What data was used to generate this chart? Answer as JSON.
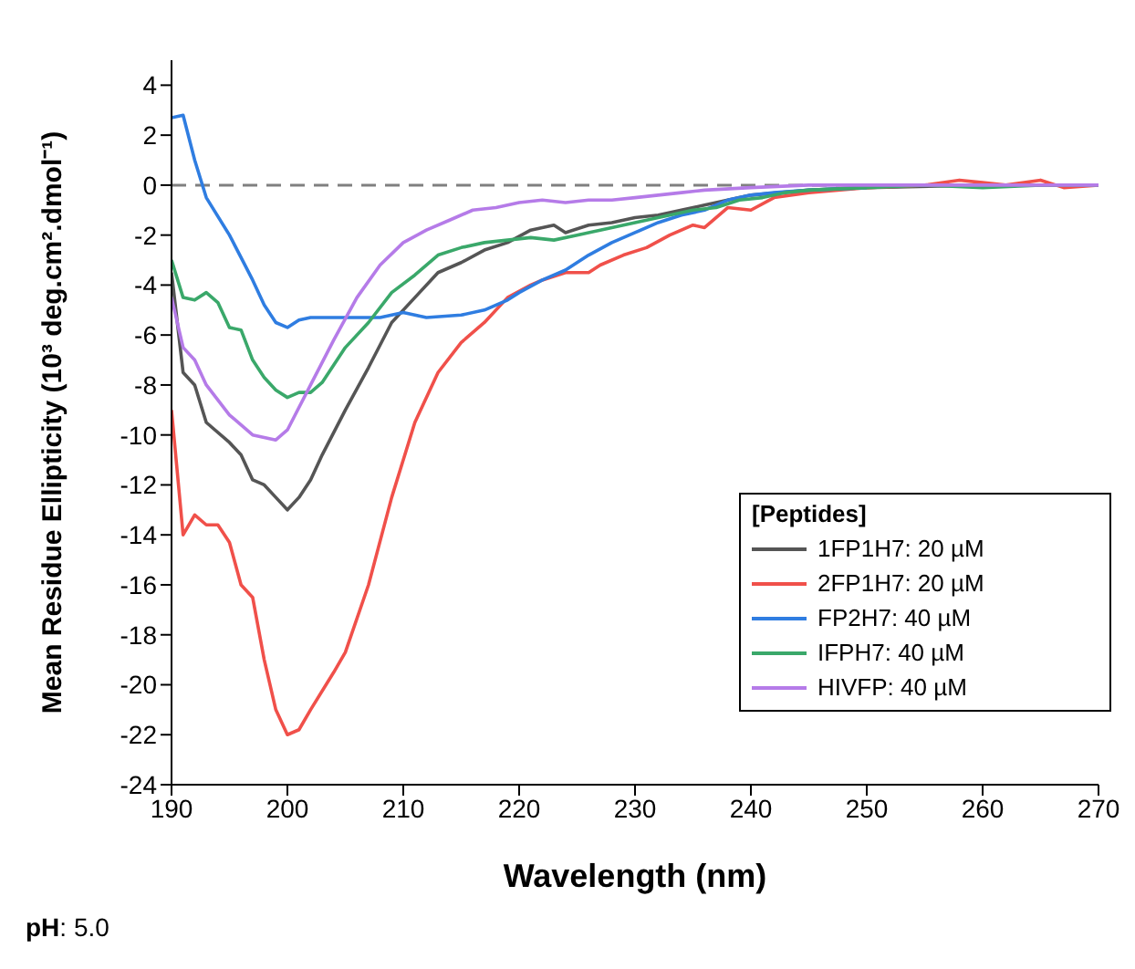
{
  "chart_data": {
    "type": "line",
    "xlabel": "Wavelength (nm)",
    "ylabel": "Mean Residue Ellipticity (10³ deg.cm².dmol⁻¹)",
    "legend_title": "[Peptides]",
    "xlim": [
      190,
      270
    ],
    "xticks": [
      190,
      200,
      210,
      220,
      230,
      240,
      250,
      260,
      270
    ],
    "ylim": [
      -24,
      5
    ],
    "yticks": [
      -24,
      -22,
      -20,
      -18,
      -16,
      -14,
      -12,
      -10,
      -8,
      -6,
      -4,
      -2,
      0,
      2,
      4
    ],
    "grid": false,
    "legend": "bottom right",
    "marker": "none",
    "line_style": "solid",
    "ref_lines": [
      {
        "axis": "y",
        "value": 0,
        "color": "#808080",
        "line_style": "dashed"
      }
    ],
    "annotations": [
      "pH: 5.0"
    ],
    "series": [
      {
        "name": "1FP1H7: 20 µM",
        "color": "#555555",
        "x": [
          190,
          191,
          192,
          193,
          195,
          196,
          197,
          198,
          199,
          200,
          201,
          202,
          203,
          205,
          207,
          209,
          211,
          213,
          215,
          217,
          219,
          221,
          222,
          223,
          224,
          226,
          228,
          230,
          232,
          234,
          236,
          238,
          240,
          245,
          250,
          260,
          270
        ],
        "values": [
          -3.5,
          -7.5,
          -8,
          -9.5,
          -10.3,
          -10.8,
          -11.8,
          -12,
          -12.5,
          -13,
          -12.5,
          -11.8,
          -10.8,
          -9,
          -7.3,
          -5.5,
          -4.5,
          -3.5,
          -3.1,
          -2.6,
          -2.3,
          -1.8,
          -1.7,
          -1.6,
          -1.9,
          -1.6,
          -1.5,
          -1.3,
          -1.2,
          -1.0,
          -0.8,
          -0.6,
          -0.4,
          -0.2,
          -0.1,
          0,
          0
        ]
      },
      {
        "name": "2FP1H7: 20 µM",
        "color": "#f0504a",
        "x": [
          190,
          191,
          192,
          193,
          194,
          195,
          196,
          197,
          198,
          199,
          200,
          201,
          202,
          204,
          205,
          207,
          209,
          211,
          213,
          215,
          217,
          219,
          221,
          222,
          224,
          226,
          227,
          229,
          231,
          233,
          235,
          236,
          238,
          240,
          242,
          245,
          250,
          255,
          258,
          260,
          262,
          265,
          267,
          270
        ],
        "values": [
          -9,
          -14,
          -13.2,
          -13.6,
          -13.6,
          -14.3,
          -16,
          -16.5,
          -19,
          -21,
          -22,
          -21.8,
          -21,
          -19.5,
          -18.7,
          -16,
          -12.5,
          -9.5,
          -7.5,
          -6.3,
          -5.5,
          -4.5,
          -4,
          -3.8,
          -3.5,
          -3.5,
          -3.2,
          -2.8,
          -2.5,
          -2.0,
          -1.6,
          -1.7,
          -0.9,
          -1.0,
          -0.5,
          -0.3,
          -0.1,
          0,
          0.2,
          0.1,
          0,
          0.2,
          -0.1,
          0
        ]
      },
      {
        "name": "FP2H7: 40 µM",
        "color": "#2f7de1",
        "x": [
          190,
          191,
          192,
          193,
          195,
          197,
          198,
          199,
          200,
          201,
          202,
          205,
          208,
          210,
          212,
          215,
          217,
          219,
          220,
          222,
          224,
          226,
          228,
          230,
          232,
          234,
          236,
          238,
          240,
          242,
          245,
          250
        ],
        "values": [
          2.7,
          2.8,
          1,
          -0.5,
          -2,
          -3.8,
          -4.8,
          -5.5,
          -5.7,
          -5.4,
          -5.3,
          -5.3,
          -5.3,
          -5.1,
          -5.3,
          -5.2,
          -5.0,
          -4.6,
          -4.3,
          -3.8,
          -3.4,
          -2.8,
          -2.3,
          -1.9,
          -1.5,
          -1.2,
          -1.0,
          -0.6,
          -0.4,
          -0.3,
          -0.2,
          -0.1
        ]
      },
      {
        "name": "IFPH7: 40 µM",
        "color": "#3aa86a",
        "x": [
          190,
          191,
          192,
          193,
          194,
          195,
          196,
          197,
          198,
          199,
          200,
          201,
          202,
          203,
          205,
          207,
          209,
          211,
          213,
          215,
          217,
          219,
          221,
          223,
          225,
          227,
          229,
          231,
          233,
          235,
          237,
          239,
          241,
          243,
          245,
          250,
          255,
          260,
          265,
          270
        ],
        "values": [
          -3,
          -4.5,
          -4.6,
          -4.3,
          -4.7,
          -5.7,
          -5.8,
          -7,
          -7.7,
          -8.2,
          -8.5,
          -8.3,
          -8.3,
          -7.9,
          -6.5,
          -5.5,
          -4.3,
          -3.6,
          -2.8,
          -2.5,
          -2.3,
          -2.2,
          -2.1,
          -2.2,
          -2.0,
          -1.8,
          -1.6,
          -1.4,
          -1.2,
          -1.0,
          -0.9,
          -0.6,
          -0.5,
          -0.3,
          -0.2,
          -0.1,
          0,
          -0.1,
          0,
          0
        ]
      },
      {
        "name": "HIVFP: 40 µM",
        "color": "#b57be8",
        "x": [
          190,
          191,
          192,
          193,
          195,
          197,
          199,
          200,
          202,
          204,
          206,
          208,
          210,
          212,
          214,
          216,
          218,
          220,
          222,
          224,
          226,
          228,
          230,
          232,
          234,
          236,
          240,
          245,
          250,
          270
        ],
        "values": [
          -4.5,
          -6.5,
          -7,
          -8,
          -9.2,
          -10,
          -10.2,
          -9.8,
          -8,
          -6.2,
          -4.5,
          -3.2,
          -2.3,
          -1.8,
          -1.4,
          -1,
          -0.9,
          -0.7,
          -0.6,
          -0.7,
          -0.6,
          -0.6,
          -0.5,
          -0.4,
          -0.3,
          -0.2,
          -0.1,
          0,
          0,
          0
        ]
      }
    ]
  }
}
